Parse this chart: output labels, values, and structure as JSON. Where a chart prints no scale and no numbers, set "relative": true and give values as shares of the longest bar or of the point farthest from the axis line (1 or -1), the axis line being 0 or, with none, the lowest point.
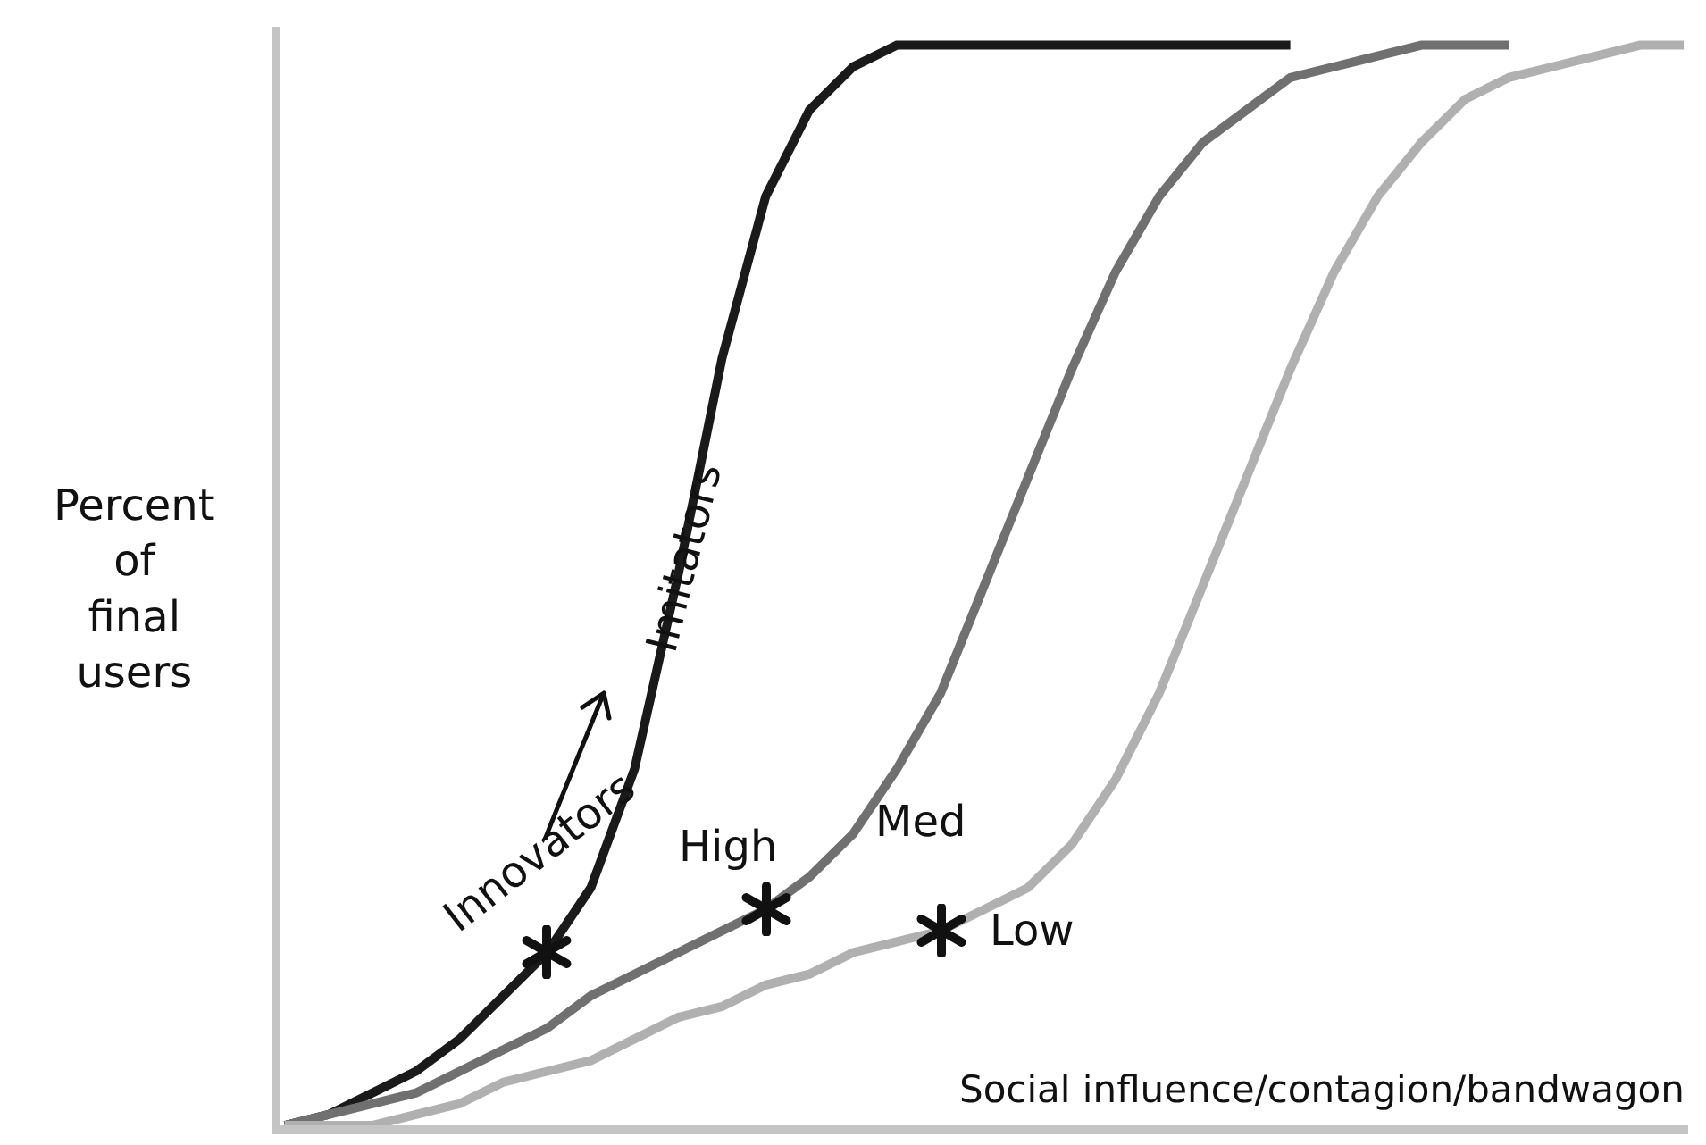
{
  "chart_data": {
    "type": "line",
    "relative": true,
    "xlabel": "Social influence/contagion/bandwagon",
    "ylabel": "Percent\nof\nfinal\nusers",
    "categories": [
      null,
      null,
      null,
      null,
      null,
      null,
      null,
      null,
      null,
      null,
      null,
      null,
      null,
      null,
      null,
      null,
      null,
      null,
      null,
      null,
      null,
      null,
      null,
      null,
      null,
      null,
      null,
      null,
      null,
      null,
      null,
      null,
      null
    ],
    "series": [
      {
        "color": "#1a1a1a",
        "values": [
          0,
          0.01,
          0.03,
          0.05,
          0.08,
          0.12,
          0.16,
          0.22,
          0.33,
          0.51,
          0.71,
          0.86,
          0.94,
          0.98,
          1,
          1,
          1,
          1,
          1,
          1,
          1,
          1,
          1,
          1,
          null,
          null,
          null,
          null,
          null,
          null,
          null,
          null,
          null
        ]
      },
      {
        "color": "#707070",
        "values": [
          0,
          0.01,
          0.02,
          0.03,
          0.05,
          0.07,
          0.09,
          0.12,
          0.14,
          0.16,
          0.18,
          0.2,
          0.23,
          0.27,
          0.33,
          0.4,
          0.5,
          0.6,
          0.7,
          0.79,
          0.86,
          0.91,
          0.94,
          0.97,
          0.98,
          0.99,
          1,
          1,
          1,
          null,
          null,
          null,
          null
        ]
      },
      {
        "color": "#b0b0b0",
        "values": [
          0,
          0,
          0,
          0.01,
          0.02,
          0.04,
          0.05,
          0.06,
          0.08,
          0.1,
          0.11,
          0.13,
          0.14,
          0.16,
          0.17,
          0.18,
          0.2,
          0.22,
          0.26,
          0.32,
          0.4,
          0.5,
          0.6,
          0.7,
          0.79,
          0.86,
          0.91,
          0.95,
          0.97,
          0.98,
          0.99,
          1,
          1
        ]
      }
    ],
    "annotations": [
      "Innovators",
      "Imitators",
      "High",
      "Med",
      "Low"
    ],
    "marker": "none",
    "line_style": "solid"
  }
}
